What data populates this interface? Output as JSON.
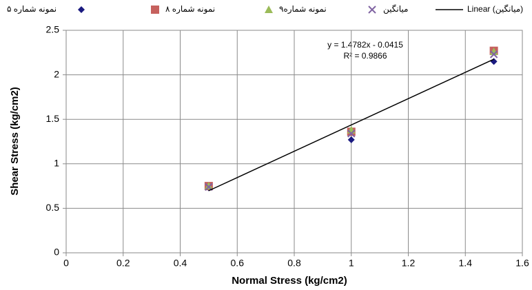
{
  "chart_data": {
    "type": "scatter",
    "x_label": "Normal Stress (kg/cm2)",
    "y_label": "Shear Stress (kg/cm2)",
    "xlim": [
      0,
      1.6
    ],
    "xticks": [
      0,
      0.2,
      0.4,
      0.6,
      0.8,
      1,
      1.2,
      1.4,
      1.6
    ],
    "ylim": [
      0,
      2.5
    ],
    "yticks": [
      0,
      0.5,
      1,
      1.5,
      2,
      2.5
    ],
    "grid": true,
    "series": [
      {
        "name": "نمونه شماره ۵",
        "color": "#1a1a80",
        "marker": "diamond",
        "x": [
          0.5,
          1,
          1.5
        ],
        "values": [
          0.73,
          1.27,
          2.15
        ]
      },
      {
        "name": "نمونه شماره ۸",
        "color": "#c0504d",
        "marker": "square",
        "x": [
          0.5,
          1,
          1.5
        ],
        "values": [
          0.75,
          1.36,
          2.27
        ]
      },
      {
        "name": "نمونه شماره۹",
        "color": "#9bbb59",
        "marker": "triangle",
        "x": [
          0.5,
          1,
          1.5
        ],
        "values": [
          0.75,
          1.38,
          2.26
        ]
      },
      {
        "name": "میانگین",
        "color": "#8064a2",
        "marker": "x",
        "x": [
          0.5,
          1,
          1.5
        ],
        "values": [
          0.74,
          1.34,
          2.23
        ]
      },
      {
        "name": "Linear (میانگین)",
        "color": "#000000",
        "marker": "line",
        "x": [
          0.5,
          1.5
        ],
        "values": [
          0.6976,
          2.1758
        ]
      }
    ],
    "annotations": [
      "y = 1.4782x - 0.0415",
      "R² = 0.9866"
    ]
  }
}
